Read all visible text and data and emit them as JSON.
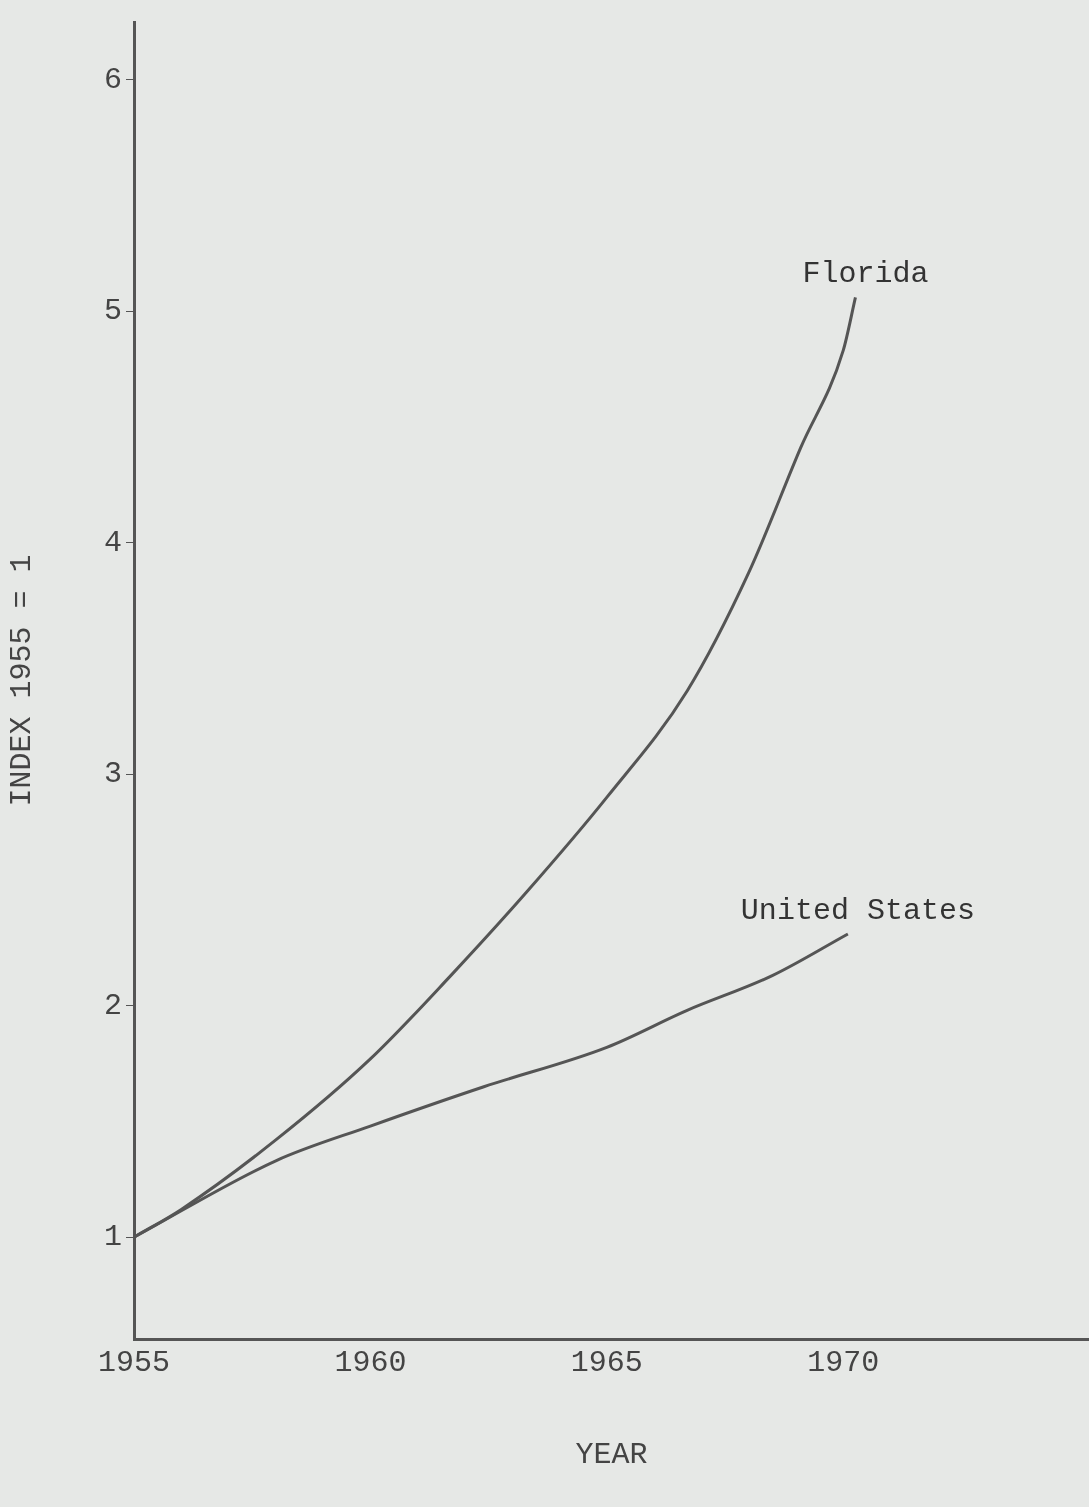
{
  "chart_data": {
    "type": "line",
    "xlabel": "YEAR",
    "ylabel": "INDEX 1955 = 1",
    "xlim": [
      1955,
      1975.2
    ],
    "ylim": [
      0.56,
      6.25
    ],
    "xticks": [
      1955,
      1960,
      1965,
      1970
    ],
    "yticks": [
      1,
      2,
      3,
      4,
      5,
      6
    ],
    "grid": false,
    "legend": false,
    "marker": "none",
    "line_style": "solid",
    "series": [
      {
        "name": "Florida",
        "color": "#555555",
        "x": [
          1955,
          1956,
          1958,
          1960,
          1961.7,
          1963.3,
          1965,
          1966.7,
          1968,
          1969.1,
          1970,
          1970.26
        ],
        "values": [
          1.0,
          1.12,
          1.42,
          1.77,
          2.13,
          2.49,
          2.9,
          3.36,
          3.87,
          4.41,
          4.83,
          5.06
        ]
      },
      {
        "name": "United States",
        "color": "#555555",
        "x": [
          1955,
          1958,
          1960,
          1962.4,
          1965,
          1966.7,
          1968.5,
          1970.1
        ],
        "values": [
          1.0,
          1.33,
          1.48,
          1.65,
          1.82,
          1.98,
          2.13,
          2.31
        ]
      }
    ]
  }
}
